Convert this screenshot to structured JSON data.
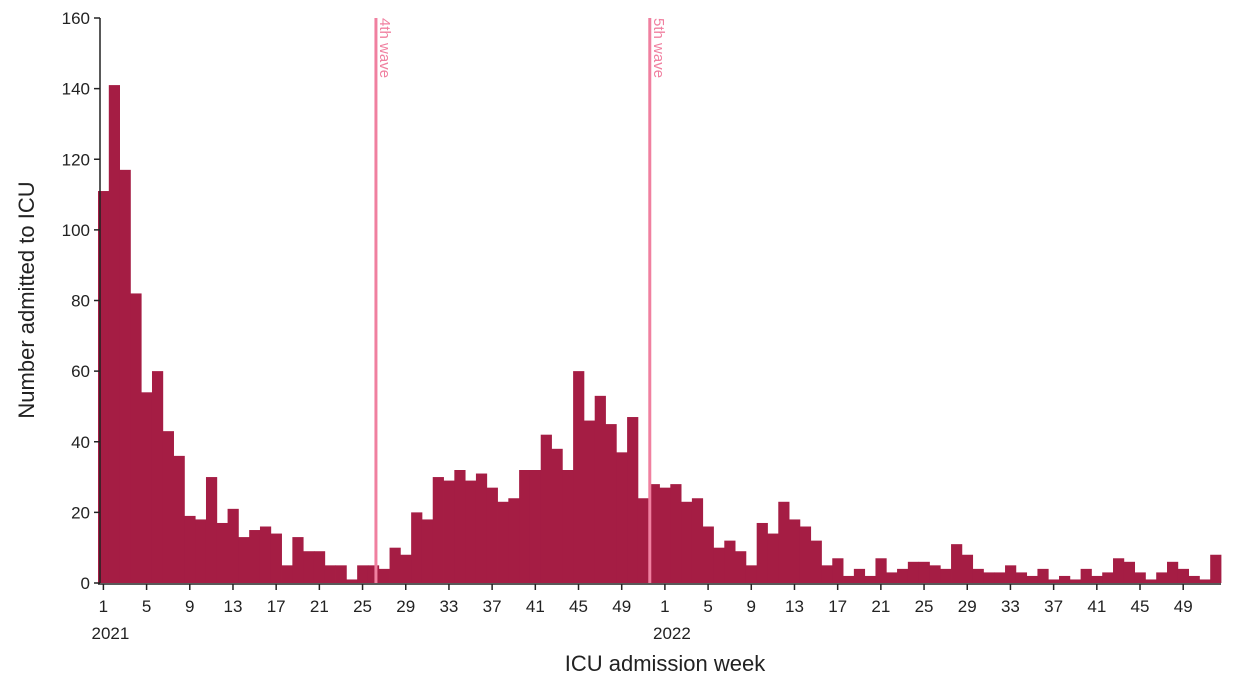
{
  "chart_data": {
    "type": "bar",
    "x_label": "ICU admission week",
    "y_label": "Number admitted to ICU",
    "color": "#a51d44",
    "ylim": [
      0,
      160
    ],
    "yticks": [
      0,
      20,
      40,
      60,
      80,
      100,
      120,
      140,
      160
    ],
    "years": [
      "2021",
      "2022"
    ],
    "categories": [
      1,
      null,
      null,
      null,
      5,
      null,
      null,
      null,
      9,
      null,
      null,
      null,
      13,
      null,
      null,
      null,
      17,
      null,
      null,
      null,
      21,
      null,
      null,
      null,
      25,
      null,
      null,
      null,
      29,
      null,
      null,
      null,
      33,
      null,
      null,
      null,
      37,
      null,
      null,
      null,
      41,
      null,
      null,
      null,
      45,
      null,
      null,
      null,
      49,
      null,
      null,
      null,
      1,
      null,
      null,
      null,
      5,
      null,
      null,
      null,
      9,
      null,
      null,
      null,
      13,
      null,
      null,
      null,
      17,
      null,
      null,
      null,
      21,
      null,
      null,
      null,
      25,
      null,
      null,
      null,
      29,
      null,
      null,
      null,
      33,
      null,
      null,
      null,
      37,
      null,
      null,
      null,
      41,
      null,
      null,
      null,
      45,
      null,
      null,
      null,
      49,
      null,
      null,
      null
    ],
    "values": [
      111,
      141,
      117,
      82,
      54,
      60,
      43,
      36,
      19,
      18,
      30,
      17,
      21,
      13,
      15,
      16,
      14,
      5,
      13,
      9,
      9,
      5,
      5,
      1,
      5,
      5,
      4,
      10,
      8,
      20,
      18,
      30,
      29,
      32,
      29,
      31,
      27,
      23,
      24,
      32,
      32,
      42,
      38,
      32,
      60,
      46,
      53,
      45,
      37,
      47,
      24,
      28,
      27,
      28,
      23,
      24,
      16,
      10,
      12,
      9,
      5,
      17,
      14,
      23,
      18,
      16,
      12,
      5,
      7,
      2,
      4,
      2,
      7,
      3,
      4,
      6,
      6,
      5,
      4,
      11,
      8,
      4,
      3,
      3,
      5,
      3,
      2,
      4,
      1,
      2,
      1,
      4,
      2,
      3,
      7,
      6,
      3,
      1,
      3,
      6,
      4,
      2,
      1,
      8
    ],
    "annotations": [
      {
        "label": "4th wave",
        "x": 25.24,
        "color": "#f080a0"
      },
      {
        "label": "5th wave",
        "x": 50.6,
        "color": "#f080a0"
      }
    ]
  }
}
